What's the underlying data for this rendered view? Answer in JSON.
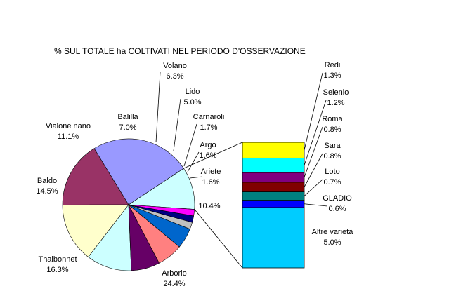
{
  "chart_data": {
    "type": "pie",
    "title": "% SUL TOTALE ha COLTIVATI NEL PERIODO D'OSSERVAZIONE",
    "slices": [
      {
        "label": "",
        "value": 10.4,
        "display": "10.4%",
        "color": "#CCFFFF"
      },
      {
        "label": "Arborio",
        "value": 24.4,
        "display": "24.4%",
        "color": "#9999FF"
      },
      {
        "label": "Thaibonnet",
        "value": 16.3,
        "display": "16.3%",
        "color": "#993366"
      },
      {
        "label": "Baldo",
        "value": 14.5,
        "display": "14.5%",
        "color": "#FFFFCC"
      },
      {
        "label": "Vialone nano",
        "value": 11.1,
        "display": "11.1%",
        "color": "#CCFFFF"
      },
      {
        "label": "Balilla",
        "value": 7.0,
        "display": "7.0%",
        "color": "#660066"
      },
      {
        "label": "Volano",
        "value": 6.3,
        "display": "6.3%",
        "color": "#FF8080"
      },
      {
        "label": "Lido",
        "value": 5.0,
        "display": "5.0%",
        "color": "#0066CC"
      },
      {
        "label": "Carnaroli",
        "value": 1.7,
        "display": "1.7%",
        "color": "#C0C0C0"
      },
      {
        "label": "Argo",
        "value": 1.6,
        "display": "1.6%",
        "color": "#000080"
      },
      {
        "label": "Ariete",
        "value": 1.6,
        "display": "1.6%",
        "color": "#FF00FF"
      }
    ],
    "breakout": {
      "from_slice": "",
      "segments": [
        {
          "label": "Altre varietà",
          "value": 5.0,
          "display": "5.0%",
          "color": "#00CCFF"
        },
        {
          "label": "GLADIO",
          "value": 0.6,
          "display": "0.6%",
          "color": "#0000FF"
        },
        {
          "label": "Loto",
          "value": 0.7,
          "display": "0.7%",
          "color": "#008080"
        },
        {
          "label": "Sara",
          "value": 0.8,
          "display": "0.8%",
          "color": "#800000"
        },
        {
          "label": "Roma",
          "value": 0.8,
          "display": "0.8%",
          "color": "#800080"
        },
        {
          "label": "Selenio",
          "value": 1.2,
          "display": "1.2%",
          "color": "#00FFFF"
        },
        {
          "label": "Redi",
          "value": 1.3,
          "display": "1.3%",
          "color": "#FFFF00"
        }
      ]
    },
    "legend": "none"
  }
}
